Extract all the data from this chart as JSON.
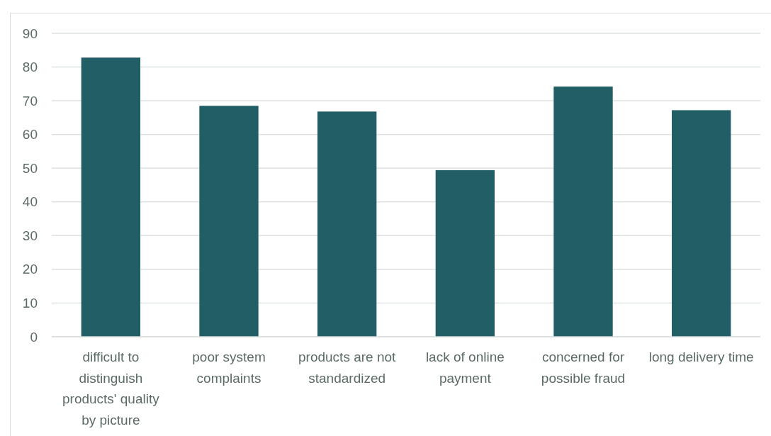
{
  "chart_data": {
    "type": "bar",
    "categories": [
      "difficult to distinguish products' quality by picture",
      "poor system complaints",
      "products are not standardized",
      "lack of online payment",
      "concerned for possible fraud",
      "long delivery time"
    ],
    "values": [
      82.8,
      68.5,
      66.8,
      49.4,
      74.2,
      67.2
    ],
    "color": "#225e66",
    "ylim": [
      0,
      90
    ],
    "yticks": [
      0,
      10,
      20,
      30,
      40,
      50,
      60,
      70,
      80,
      90
    ],
    "grid": "y"
  }
}
